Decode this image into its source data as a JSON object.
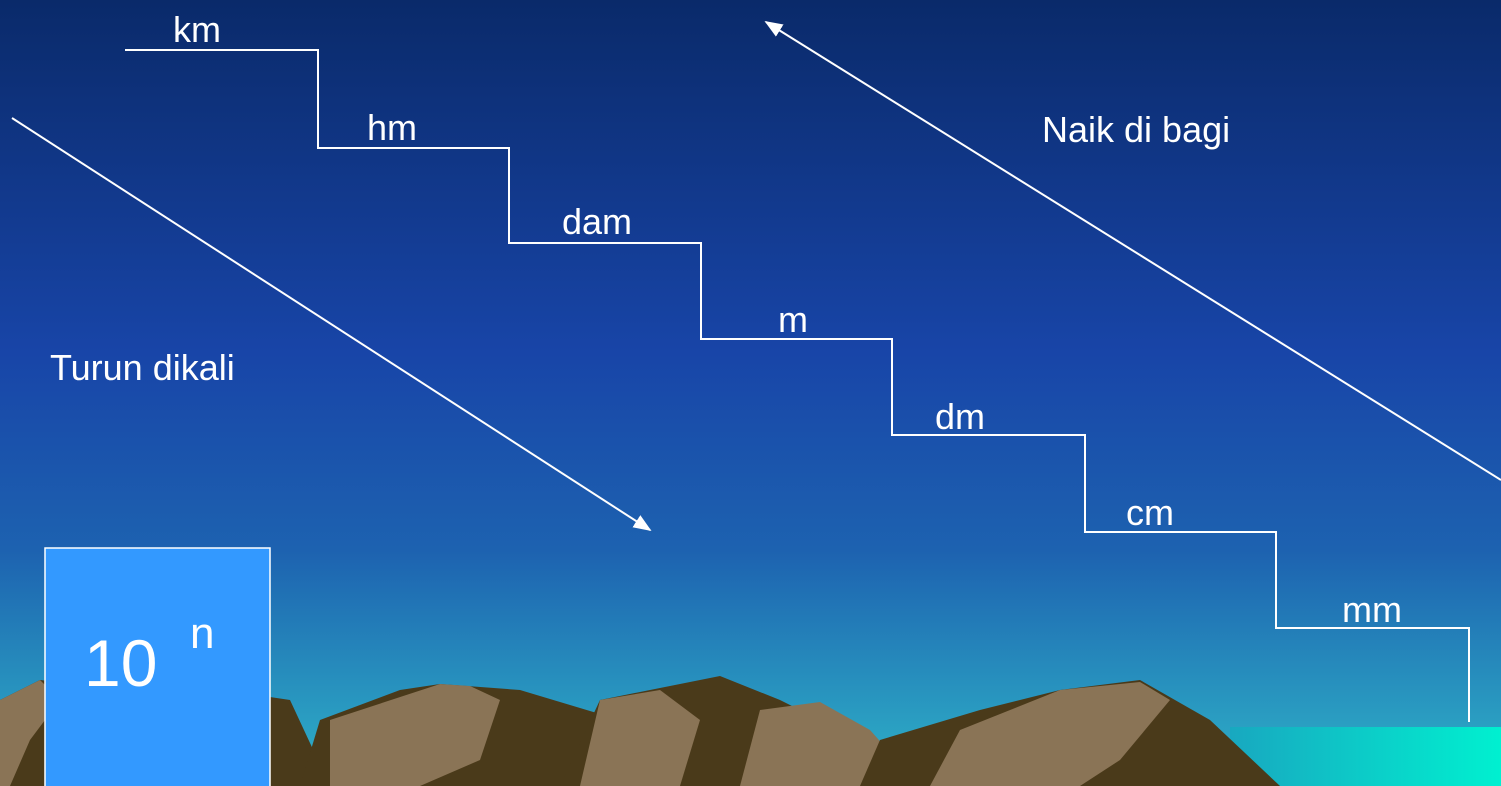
{
  "steps": [
    "km",
    "hm",
    "dam",
    "m",
    "dm",
    "cm",
    "mm"
  ],
  "labels": {
    "down": "Turun dikali",
    "up": "Naik di bagi"
  },
  "box": {
    "base": "10",
    "exponent": "n"
  }
}
